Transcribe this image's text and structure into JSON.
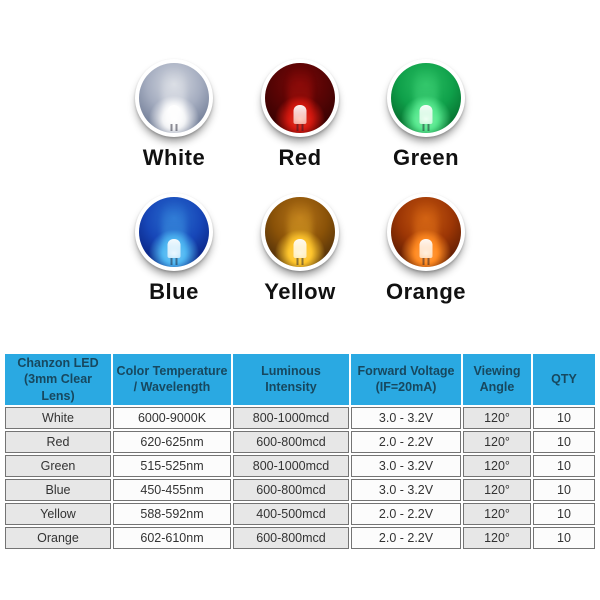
{
  "theme": {
    "header_bg": "#2aa9e2",
    "header_text": "#17485f",
    "row_alt": "#e7e7e7",
    "row_main": "#fcfcfc",
    "border": "#747474"
  },
  "leds": {
    "items": [
      {
        "label": "White",
        "colors": {
          "top": "#d5d9e1",
          "mid": "#a5adc0",
          "edge": "#6e7a94",
          "glow": "rgba(255,255,255,0.85)",
          "glow_center": "#ffffff"
        }
      },
      {
        "label": "Red",
        "colors": {
          "top": "#7a0808",
          "mid": "#560404",
          "edge": "#330202",
          "glow": "#d41910",
          "glow_center": "#ff7a50"
        }
      },
      {
        "label": "Green",
        "colors": {
          "top": "#2bbf63",
          "mid": "#0fa04a",
          "edge": "#056a2c",
          "glow": "#58e88f",
          "glow_center": "#d6ffe2"
        }
      },
      {
        "label": "Blue",
        "colors": {
          "top": "#2a6fd0",
          "mid": "#1747b8",
          "edge": "#0a2280",
          "glow": "#4fb7f2",
          "glow_center": "#cfeeff"
        }
      },
      {
        "label": "Yellow",
        "colors": {
          "top": "#b5741a",
          "mid": "#8a5208",
          "edge": "#4e2e0a",
          "glow": "#ffc62e",
          "glow_center": "#ffeaa0"
        }
      },
      {
        "label": "Orange",
        "colors": {
          "top": "#c85a10",
          "mid": "#9c3605",
          "edge": "#591a03",
          "glow": "#ff8a22",
          "glow_center": "#ffd9a8"
        }
      }
    ]
  },
  "table": {
    "headers": [
      {
        "line1": "Chanzon LED",
        "line2": "(3mm Clear Lens)"
      },
      {
        "line1": "Color Temperature",
        "line2": "/ Wavelength"
      },
      {
        "line1": "Luminous",
        "line2": "Intensity"
      },
      {
        "line1": "Forward Voltage",
        "line2": "(IF=20mA)"
      },
      {
        "line1": "Viewing",
        "line2": "Angle"
      },
      {
        "line1": "QTY",
        "line2": ""
      }
    ],
    "rows": [
      [
        "White",
        "6000-9000K",
        "800-1000mcd",
        "3.0 - 3.2V",
        "120°",
        "10"
      ],
      [
        "Red",
        "620-625nm",
        "600-800mcd",
        "2.0 - 2.2V",
        "120°",
        "10"
      ],
      [
        "Green",
        "515-525nm",
        "800-1000mcd",
        "3.0 - 3.2V",
        "120°",
        "10"
      ],
      [
        "Blue",
        "450-455nm",
        "600-800mcd",
        "3.0 - 3.2V",
        "120°",
        "10"
      ],
      [
        "Yellow",
        "588-592nm",
        "400-500mcd",
        "2.0 - 2.2V",
        "120°",
        "10"
      ],
      [
        "Orange",
        "602-610nm",
        "600-800mcd",
        "2.0 - 2.2V",
        "120°",
        "10"
      ]
    ]
  }
}
